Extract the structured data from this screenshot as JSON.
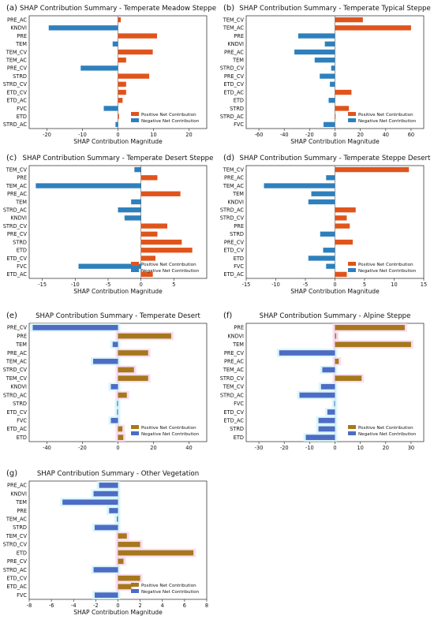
{
  "colors": {
    "scheme1": {
      "positive": "#E0541C",
      "negative": "#2E80BD"
    },
    "scheme2": {
      "positive": "#A6781C",
      "negative": "#4E6CC4"
    }
  },
  "chart_data": [
    {
      "panel_label": "(a)",
      "type": "bar",
      "orientation": "horizontal",
      "color_scheme": "scheme1",
      "title": "SHAP Contribution Summary - Temperate Meadow Steppe",
      "xlabel": "SHAP Contribution Magnitude",
      "xlim": [
        -25,
        25
      ],
      "xticks": [
        -20,
        -10,
        0,
        10,
        20
      ],
      "categories": [
        "PRE_AC",
        "KNDVI",
        "PRE",
        "TEM",
        "TEM_CV",
        "TEM_AC",
        "PRE_CV",
        "STRD",
        "STRD_CV",
        "ETD_CV",
        "ETD_AC",
        "FVC",
        "ETD",
        "STRD_AC"
      ],
      "values": [
        0.8,
        -19.5,
        11,
        -1.5,
        9.8,
        2.3,
        -10.5,
        8.8,
        2.3,
        2.3,
        1.3,
        -4,
        0.3,
        -0.7
      ],
      "legend": [
        "Positive Net Contribution",
        "Negative Net Contribution"
      ],
      "legend_position": "bottom-right",
      "grid": false
    },
    {
      "panel_label": "(b)",
      "type": "bar",
      "orientation": "horizontal",
      "color_scheme": "scheme1",
      "title": "SHAP Contribution Summary - Temperate Typical Steppe",
      "xlabel": "SHAP Contribution Magnitude",
      "xlim": [
        -70,
        70
      ],
      "xticks": [
        -60,
        -40,
        -20,
        0,
        20,
        40,
        60
      ],
      "categories": [
        "TEM_CV",
        "TEM_AC",
        "PRE",
        "KNDVI",
        "PRE_AC",
        "TEM",
        "STRD_CV",
        "PRE_CV",
        "ETD_CV",
        "ETD_AC",
        "ETD",
        "STRD",
        "STRD_AC",
        "FVC"
      ],
      "values": [
        22,
        60,
        -29,
        -8,
        -32,
        -16,
        -3,
        -12,
        -4,
        13,
        -5,
        11,
        0.5,
        -9
      ],
      "legend": [
        "Positive Net Contribution",
        "Negative Net Contribution"
      ],
      "legend_position": "bottom-right",
      "grid": false
    },
    {
      "panel_label": "(c)",
      "type": "bar",
      "orientation": "horizontal",
      "color_scheme": "scheme1",
      "title": "SHAP Contribution Summary - Temperate Desert Steppe",
      "xlabel": "SHAP Contribution Magnitude",
      "xlim": [
        -17,
        10
      ],
      "xticks": [
        -15,
        -10,
        -5,
        0,
        5
      ],
      "categories": [
        "TEM_CV",
        "PRE",
        "TEM_AC",
        "PRE_AC",
        "TEM",
        "STRD_AC",
        "KNDVI",
        "STRD_CV",
        "PRE_CV",
        "STRD",
        "ETD",
        "ETD_CV",
        "FVC",
        "ETD_AC"
      ],
      "values": [
        -1,
        2.5,
        -16,
        6,
        -1.5,
        -3.5,
        -2.5,
        4,
        2.5,
        6.2,
        7.8,
        2.2,
        -9.5,
        1.8
      ],
      "legend": [
        "Positive Net Contribution",
        "Negative Net Contribution"
      ],
      "legend_position": "bottom-right",
      "grid": false
    },
    {
      "panel_label": "(d)",
      "type": "bar",
      "orientation": "horizontal",
      "color_scheme": "scheme1",
      "title": "SHAP Contribution Summary - Temperate Steppe Desert",
      "xlabel": "SHAP Contribution Magnitude",
      "xlim": [
        -15,
        15
      ],
      "xticks": [
        -15,
        -10,
        -5,
        0,
        5,
        10,
        15
      ],
      "categories": [
        "TEM_CV",
        "PRE_AC",
        "TEM_AC",
        "TEM",
        "KNDVI",
        "STRD_AC",
        "STRD_CV",
        "PRE",
        "STRD",
        "PRE_CV",
        "ETD_CV",
        "ETD",
        "FVC",
        "ETD_AC"
      ],
      "values": [
        12.5,
        -1.5,
        -12,
        -4,
        -4.5,
        3.5,
        2,
        2.5,
        -2.5,
        3,
        -2,
        -4.5,
        -1.5,
        2
      ],
      "legend": [
        "Positive Net Contribution",
        "Negative Net Contribution"
      ],
      "legend_position": "bottom-right",
      "grid": false
    },
    {
      "panel_label": "(e)",
      "type": "bar",
      "orientation": "horizontal",
      "color_scheme": "scheme2",
      "title": "SHAP Contribution Summary - Temperate Desert",
      "xlabel": "",
      "xlim": [
        -50,
        50
      ],
      "xticks": [
        -40,
        -20,
        0,
        20,
        40
      ],
      "categories": [
        "PRE_CV",
        "PRE",
        "TEM",
        "PRE_AC",
        "TEM_AC",
        "STRD_CV",
        "TEM_CV",
        "KNDVI",
        "STRD_AC",
        "STRD",
        "ETD_CV",
        "FVC",
        "ETD_AC",
        "ETD"
      ],
      "values": [
        -48,
        30,
        -3,
        17,
        -14,
        9,
        17,
        -4,
        5,
        -0.5,
        -0.5,
        -4,
        2.5,
        3
      ],
      "legend": [
        "Positive Net Contribution",
        "Negative Net Contribution"
      ],
      "legend_position": "bottom-right",
      "grid": false
    },
    {
      "panel_label": "(f)",
      "type": "bar",
      "orientation": "horizontal",
      "color_scheme": "scheme2",
      "title": "SHAP Contribution Summary - Alpine Steppe",
      "xlabel": "",
      "xlim": [
        -35,
        35
      ],
      "xticks": [
        -30,
        -20,
        -10,
        0,
        10,
        20,
        30
      ],
      "categories": [
        "PRE",
        "KNDVI",
        "TEM",
        "PRE_CV",
        "PRE_AC",
        "TEM_AC",
        "STRD_CV",
        "TEM_CV",
        "STRD_AC",
        "FVC",
        "ETD_CV",
        "ETD_AC",
        "STRD",
        "ETD"
      ],
      "values": [
        27.5,
        0.5,
        30,
        -22,
        1.5,
        -5,
        10.5,
        -5.5,
        -14,
        -0.3,
        -3,
        -6.5,
        -6.5,
        -11.5
      ],
      "legend": [
        "Positive Net Contribution",
        "Negative Net Contribution"
      ],
      "legend_position": "bottom-right",
      "grid": false
    },
    {
      "panel_label": "(g)",
      "type": "bar",
      "orientation": "horizontal",
      "color_scheme": "scheme2",
      "title": "SHAP Contribution Summary - Other Vegetation",
      "xlabel": "SHAP Contribution Magnitude",
      "xlim": [
        -8,
        8
      ],
      "xticks": [
        -8,
        -6,
        -4,
        -2,
        0,
        2,
        4,
        6,
        8
      ],
      "categories": [
        "PRE_AC",
        "KNDVI",
        "TEM",
        "PRE",
        "TEM_AC",
        "STRD",
        "TEM_CV",
        "STRD_CV",
        "ETD",
        "PRE_CV",
        "STRD_AC",
        "ETD_CV",
        "ETD_AC",
        "FVC"
      ],
      "values": [
        -1.7,
        -2.2,
        -5,
        -0.8,
        -0.1,
        -2.1,
        0.8,
        2,
        6.8,
        0.5,
        -2.2,
        2,
        1.2,
        -2.1
      ],
      "legend": [
        "Positive Net Contribution",
        "Negative Net Contribution"
      ],
      "legend_position": "bottom-right",
      "grid": false
    }
  ]
}
